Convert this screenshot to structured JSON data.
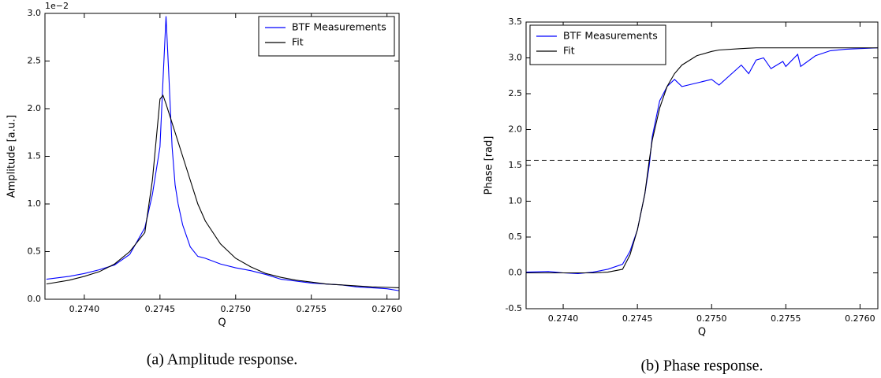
{
  "chart_data": [
    {
      "type": "line",
      "ylabel": "Amplitude [a.u.]",
      "xlabel": "Q",
      "caption": "(a) Amplitude response.",
      "y_offset_text": "1e−2",
      "legend": "upper right",
      "x": [
        0.27375,
        0.2739,
        0.274,
        0.2741,
        0.2742,
        0.2743,
        0.2744,
        0.27445,
        0.2745,
        0.27452,
        0.27454,
        0.27456,
        0.27458,
        0.2746,
        0.27462,
        0.27465,
        0.2747,
        0.27475,
        0.2748,
        0.2749,
        0.275,
        0.2751,
        0.2752,
        0.2753,
        0.2754,
        0.2755,
        0.2756,
        0.2757,
        0.2758,
        0.2759,
        0.276,
        0.27608
      ],
      "series": [
        {
          "name": "BTF Measurements",
          "color": "#0000ff",
          "values": [
            0.21,
            0.24,
            0.27,
            0.31,
            0.36,
            0.47,
            0.75,
            1.1,
            1.6,
            2.3,
            2.97,
            2.3,
            1.6,
            1.2,
            1.0,
            0.78,
            0.55,
            0.45,
            0.43,
            0.37,
            0.33,
            0.3,
            0.26,
            0.21,
            0.19,
            0.17,
            0.16,
            0.15,
            0.13,
            0.12,
            0.11,
            0.09
          ]
        },
        {
          "name": "Fit",
          "color": "#000000",
          "values": [
            0.16,
            0.2,
            0.24,
            0.29,
            0.37,
            0.5,
            0.7,
            1.25,
            2.1,
            2.14,
            2.05,
            1.95,
            1.85,
            1.75,
            1.65,
            1.5,
            1.25,
            1.0,
            0.82,
            0.58,
            0.43,
            0.34,
            0.27,
            0.23,
            0.2,
            0.18,
            0.16,
            0.15,
            0.14,
            0.13,
            0.125,
            0.12
          ]
        }
      ],
      "xlim": [
        0.27374,
        0.27608
      ],
      "ylim": [
        0,
        3
      ],
      "xticks": [
        {
          "value": 0.274,
          "label": "0.2740"
        },
        {
          "value": 0.2745,
          "label": "0.2745"
        },
        {
          "value": 0.275,
          "label": "0.2750"
        },
        {
          "value": 0.2755,
          "label": "0.2755"
        },
        {
          "value": 0.276,
          "label": "0.2760"
        }
      ],
      "yticks": [
        {
          "value": 0,
          "label": "0.0"
        },
        0.5,
        {
          "value": 1,
          "label": "1.0"
        },
        1.5,
        {
          "value": 2,
          "label": "2.0"
        },
        2.5,
        {
          "value": 3,
          "label": "3.0"
        }
      ]
    },
    {
      "type": "line",
      "ylabel": "Phase [rad]",
      "xlabel": "Q",
      "caption": "(b) Phase response.",
      "legend": "upper left",
      "hline": 1.5708,
      "x": [
        0.27375,
        0.2739,
        0.274,
        0.2741,
        0.2742,
        0.2743,
        0.2744,
        0.27445,
        0.2745,
        0.27455,
        0.27458,
        0.2746,
        0.27465,
        0.2747,
        0.27475,
        0.2748,
        0.2749,
        0.275,
        0.27505,
        0.2752,
        0.27525,
        0.2753,
        0.27535,
        0.2754,
        0.27548,
        0.2755,
        0.27558,
        0.2756,
        0.2757,
        0.2758,
        0.2759,
        0.276,
        0.27612
      ],
      "series": [
        {
          "name": "BTF Measurements",
          "color": "#0000ff",
          "values": [
            0.01,
            0.02,
            0,
            -0.01,
            0.01,
            0.05,
            0.12,
            0.3,
            0.6,
            1.1,
            1.5,
            1.9,
            2.4,
            2.6,
            2.7,
            2.6,
            2.65,
            2.7,
            2.62,
            2.9,
            2.78,
            2.97,
            3.0,
            2.85,
            2.95,
            2.88,
            3.05,
            2.88,
            3.03,
            3.1,
            3.12,
            3.13,
            3.14
          ]
        },
        {
          "name": "Fit",
          "color": "#000000",
          "values": [
            0,
            0,
            0,
            0,
            0,
            0.01,
            0.05,
            0.25,
            0.6,
            1.1,
            1.57,
            1.85,
            2.3,
            2.6,
            2.78,
            2.9,
            3.03,
            3.09,
            3.11,
            3.13,
            3.135,
            3.14,
            3.14,
            3.14,
            3.14,
            3.14,
            3.14,
            3.14,
            3.14,
            3.14,
            3.14,
            3.14,
            3.14
          ]
        }
      ],
      "xlim": [
        0.27375,
        0.27612
      ],
      "ylim": [
        -0.5,
        3.5
      ],
      "xticks": [
        {
          "value": 0.274,
          "label": "0.2740"
        },
        {
          "value": 0.2745,
          "label": "0.2745"
        },
        {
          "value": 0.275,
          "label": "0.2750"
        },
        {
          "value": 0.2755,
          "label": "0.2755"
        },
        {
          "value": 0.276,
          "label": "0.2760"
        }
      ],
      "yticks": [
        -0.5,
        {
          "value": 0,
          "label": "0.0"
        },
        0.5,
        {
          "value": 1,
          "label": "1.0"
        },
        1.5,
        {
          "value": 2,
          "label": "2.0"
        },
        2.5,
        {
          "value": 3,
          "label": "3.0"
        },
        3.5
      ]
    }
  ]
}
